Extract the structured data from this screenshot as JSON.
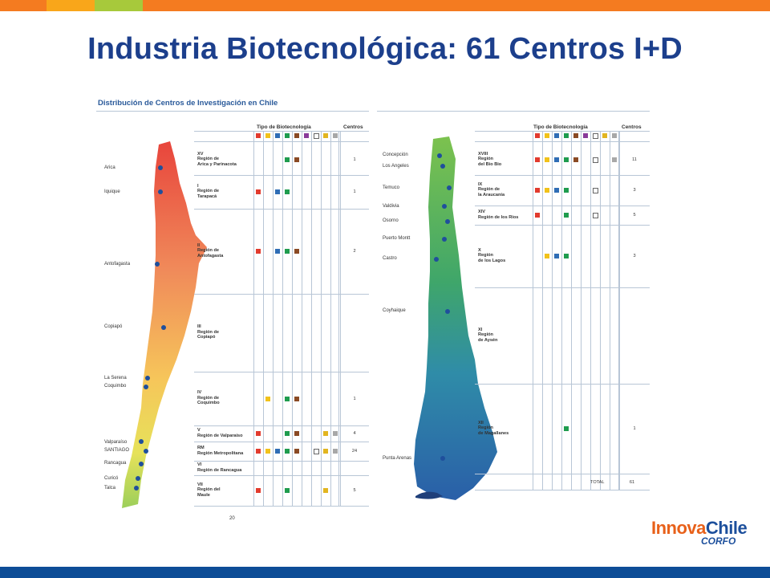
{
  "header": {
    "title": "Industria Biotecnológica: 61 Centros I+D"
  },
  "colors": {
    "title": "#1c3f8c",
    "bar_segments": [
      "#f47b20",
      "#f9a61a",
      "#a7c93b",
      "#f47b20"
    ],
    "bottom_bar": "#0d4d97",
    "category_colors": [
      "#e23b2e",
      "#f2c21a",
      "#2f6db5",
      "#1f9c4e",
      "#8a4a24",
      "#8a3b9a",
      "empty",
      "#e2b520",
      "#a8a8a8"
    ]
  },
  "figure": {
    "title": "Distribución de Centros de Investigación en Chile",
    "col_tipo": "Tipo de Biotecnología",
    "col_centros": "Centros",
    "page_number": "20",
    "total_label": "TOTAL",
    "total_value": "61",
    "left_regions": [
      {
        "num": "XV",
        "name": "Región de\nArica y Parinacota",
        "cats": [
          3,
          4
        ],
        "centros": "1"
      },
      {
        "num": "I",
        "name": "Región de\nTarapacá",
        "cats": [
          0,
          2,
          3
        ],
        "centros": "1"
      },
      {
        "num": "II",
        "name": "Región de\nAntofagasta",
        "cats": [
          0,
          2,
          3,
          4
        ],
        "centros": "2"
      },
      {
        "num": "III",
        "name": "Región de\nCopiapó",
        "cats": [],
        "centros": ""
      },
      {
        "num": "IV",
        "name": "Región de\nCoquimbo",
        "cats": [
          1,
          3,
          4
        ],
        "centros": "1"
      },
      {
        "num": "V",
        "name": "Región de Valparaíso",
        "cats": [
          0,
          3,
          4,
          7,
          8
        ],
        "centros": "4"
      },
      {
        "num": "RM",
        "name": "Región Metropolitana",
        "cats": [
          0,
          1,
          2,
          3,
          4,
          6,
          7,
          8
        ],
        "centros": "24"
      },
      {
        "num": "VI",
        "name": "Región de Rancagua",
        "cats": [],
        "centros": ""
      },
      {
        "num": "VII",
        "name": "Región del\nMaule",
        "cats": [
          0,
          3,
          7
        ],
        "centros": "5"
      }
    ],
    "right_regions": [
      {
        "num": "XVIII",
        "name": "Región\ndel Bio Bio",
        "cats": [
          0,
          1,
          2,
          3,
          4,
          6,
          8
        ],
        "centros": "11"
      },
      {
        "num": "IX",
        "name": "Región de\nla Araucanía",
        "cats": [
          0,
          1,
          2,
          3,
          6
        ],
        "centros": "3"
      },
      {
        "num": "XIV",
        "name": "Región de los Ríos",
        "cats": [
          0,
          3,
          6
        ],
        "centros": "5"
      },
      {
        "num": "X",
        "name": "Región\nde los Lagos",
        "cats": [
          1,
          2,
          3
        ],
        "centros": "3"
      },
      {
        "num": "XI",
        "name": "Región\nde Aysén",
        "cats": [],
        "centros": ""
      },
      {
        "num": "XII",
        "name": "Región\nde Magallanes",
        "cats": [
          3
        ],
        "centros": "1"
      }
    ],
    "left_cities": [
      "Arica",
      "Iquique",
      "Antofagasta",
      "Copiapó",
      "La Serena",
      "Coquimbo",
      "Valparaíso",
      "SANTIAGO",
      "Rancagua",
      "Curicó",
      "Talca"
    ],
    "right_cities": [
      "Concepción",
      "Los Angeles",
      "Temuco",
      "Valdivia",
      "Osorno",
      "Puerto Montt",
      "Castro",
      "Coyhaique",
      "Punta Arenas"
    ]
  },
  "logo": {
    "part1": "Innova",
    "part2": "Chile",
    "part3": "CORFO"
  }
}
